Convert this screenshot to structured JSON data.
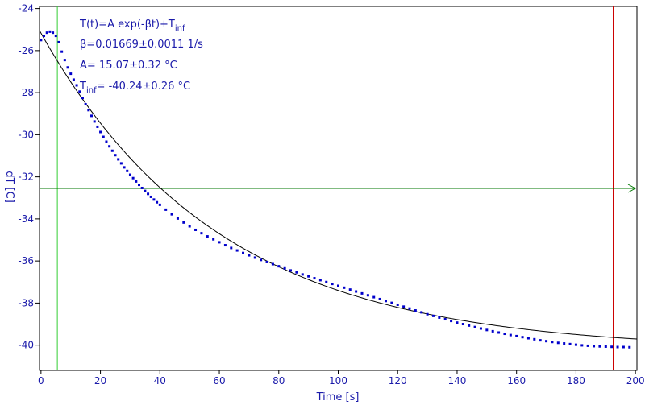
{
  "chart_data": {
    "type": "scatter",
    "title": "",
    "xlabel": "Time [s]",
    "ylabel": "dT [C]",
    "xlim": [
      -0.5,
      200.5
    ],
    "ylim": [
      -41.2,
      -23.9
    ],
    "xticks": [
      0,
      20,
      40,
      60,
      80,
      100,
      120,
      140,
      160,
      180,
      200
    ],
    "xtick_labels": [
      "0",
      "20",
      "40",
      "60",
      "80",
      "100",
      "120",
      "140",
      "160",
      "180",
      "200"
    ],
    "yticks": [
      -24,
      -26,
      -28,
      -30,
      -32,
      -34,
      -36,
      -38,
      -40
    ],
    "ytick_labels": [
      "-24",
      "-26",
      "-28",
      "-30",
      "-32",
      "-34",
      "-36",
      "-38",
      "-40"
    ],
    "grid": false,
    "legend": "none",
    "annotations": [
      {
        "main": "T(t)=A exp(-βt)+T",
        "sub": "inf",
        "tail": ""
      },
      {
        "main": "β=0.01669±0.0011 1/s",
        "sub": "",
        "tail": ""
      },
      {
        "main": "A= 15.07±0.32 °C",
        "sub": "",
        "tail": ""
      },
      {
        "main": "T",
        "sub": "inf",
        "tail": "= -40.24±0.26 °C"
      }
    ],
    "fit": {
      "A": 15.07,
      "beta": 0.01669,
      "T_inf": -40.24,
      "t_start": -0.5,
      "t_end": 200.5
    },
    "markers": {
      "green_vertical_x": 5.5,
      "red_vertical_x": 192.5,
      "horizontal_y": -32.55
    },
    "series": [
      {
        "points": [
          [
            0.0,
            -25.5
          ],
          [
            1.0,
            -25.3
          ],
          [
            2.0,
            -25.15
          ],
          [
            3.0,
            -25.1
          ],
          [
            4.0,
            -25.15
          ],
          [
            5.0,
            -25.3
          ],
          [
            6.0,
            -25.6
          ],
          [
            7.0,
            -26.05
          ],
          [
            8.0,
            -26.45
          ],
          [
            9.0,
            -26.8
          ],
          [
            10.0,
            -27.1
          ],
          [
            11.0,
            -27.38
          ],
          [
            12.0,
            -27.65
          ],
          [
            13.0,
            -27.95
          ],
          [
            14.0,
            -28.25
          ],
          [
            15.0,
            -28.55
          ],
          [
            16.0,
            -28.83
          ],
          [
            17.0,
            -29.1
          ],
          [
            18.0,
            -29.37
          ],
          [
            19.0,
            -29.62
          ],
          [
            20.0,
            -29.87
          ],
          [
            21.0,
            -30.1
          ],
          [
            22.0,
            -30.33
          ],
          [
            23.0,
            -30.55
          ],
          [
            24.0,
            -30.76
          ],
          [
            25.0,
            -30.97
          ],
          [
            26.0,
            -31.17
          ],
          [
            27.0,
            -31.36
          ],
          [
            28.0,
            -31.55
          ],
          [
            29.0,
            -31.72
          ],
          [
            30.0,
            -31.9
          ],
          [
            31.0,
            -32.06
          ],
          [
            32.0,
            -32.22
          ],
          [
            33.0,
            -32.38
          ],
          [
            34.0,
            -32.53
          ],
          [
            35.0,
            -32.67
          ],
          [
            36.0,
            -32.81
          ],
          [
            37.0,
            -32.95
          ],
          [
            38.0,
            -33.08
          ],
          [
            39.0,
            -33.21
          ],
          [
            40.0,
            -33.33
          ],
          [
            42.0,
            -33.56
          ],
          [
            44.0,
            -33.78
          ],
          [
            46.0,
            -33.98
          ],
          [
            48.0,
            -34.17
          ],
          [
            50.0,
            -34.35
          ],
          [
            52.0,
            -34.52
          ],
          [
            54.0,
            -34.68
          ],
          [
            56.0,
            -34.83
          ],
          [
            58.0,
            -34.97
          ],
          [
            60.0,
            -35.11
          ],
          [
            62.0,
            -35.25
          ],
          [
            64.0,
            -35.38
          ],
          [
            66.0,
            -35.5
          ],
          [
            68.0,
            -35.62
          ],
          [
            70.0,
            -35.73
          ],
          [
            72.0,
            -35.84
          ],
          [
            74.0,
            -35.95
          ],
          [
            76.0,
            -36.05
          ],
          [
            78.0,
            -36.15
          ],
          [
            80.0,
            -36.25
          ],
          [
            82.0,
            -36.35
          ],
          [
            84.0,
            -36.45
          ],
          [
            86.0,
            -36.54
          ],
          [
            88.0,
            -36.64
          ],
          [
            90.0,
            -36.73
          ],
          [
            92.0,
            -36.82
          ],
          [
            94.0,
            -36.91
          ],
          [
            96.0,
            -37.0
          ],
          [
            98.0,
            -37.09
          ],
          [
            100.0,
            -37.18
          ],
          [
            102.0,
            -37.27
          ],
          [
            104.0,
            -37.36
          ],
          [
            106.0,
            -37.45
          ],
          [
            108.0,
            -37.54
          ],
          [
            110.0,
            -37.63
          ],
          [
            112.0,
            -37.72
          ],
          [
            114.0,
            -37.81
          ],
          [
            116.0,
            -37.9
          ],
          [
            118.0,
            -37.99
          ],
          [
            120.0,
            -38.08
          ],
          [
            122.0,
            -38.17
          ],
          [
            124.0,
            -38.26
          ],
          [
            126.0,
            -38.35
          ],
          [
            128.0,
            -38.44
          ],
          [
            130.0,
            -38.53
          ],
          [
            132.0,
            -38.61
          ],
          [
            134.0,
            -38.69
          ],
          [
            136.0,
            -38.77
          ],
          [
            138.0,
            -38.85
          ],
          [
            140.0,
            -38.93
          ],
          [
            142.0,
            -39.0
          ],
          [
            144.0,
            -39.07
          ],
          [
            146.0,
            -39.14
          ],
          [
            148.0,
            -39.21
          ],
          [
            150.0,
            -39.28
          ],
          [
            152.0,
            -39.34
          ],
          [
            154.0,
            -39.4
          ],
          [
            156.0,
            -39.46
          ],
          [
            158.0,
            -39.52
          ],
          [
            160.0,
            -39.57
          ],
          [
            162.0,
            -39.62
          ],
          [
            164.0,
            -39.67
          ],
          [
            166.0,
            -39.72
          ],
          [
            168.0,
            -39.77
          ],
          [
            170.0,
            -39.81
          ],
          [
            172.0,
            -39.85
          ],
          [
            174.0,
            -39.89
          ],
          [
            176.0,
            -39.92
          ],
          [
            178.0,
            -39.95
          ],
          [
            180.0,
            -39.98
          ],
          [
            182.0,
            -40.01
          ],
          [
            184.0,
            -40.03
          ],
          [
            186.0,
            -40.05
          ],
          [
            188.0,
            -40.06
          ],
          [
            190.0,
            -40.07
          ],
          [
            192.0,
            -40.08
          ],
          [
            194.0,
            -40.09
          ],
          [
            196.0,
            -40.09
          ],
          [
            198.0,
            -40.1
          ]
        ]
      }
    ],
    "colors": {
      "axis": "#000000",
      "tick_text": "#1a1aaa",
      "annotation_text": "#1a1aaa",
      "points": "#0000cc",
      "fit_line": "#000000",
      "green_line": "#33cc33",
      "red_line": "#cc0000",
      "horizontal_line": "#007700"
    }
  }
}
